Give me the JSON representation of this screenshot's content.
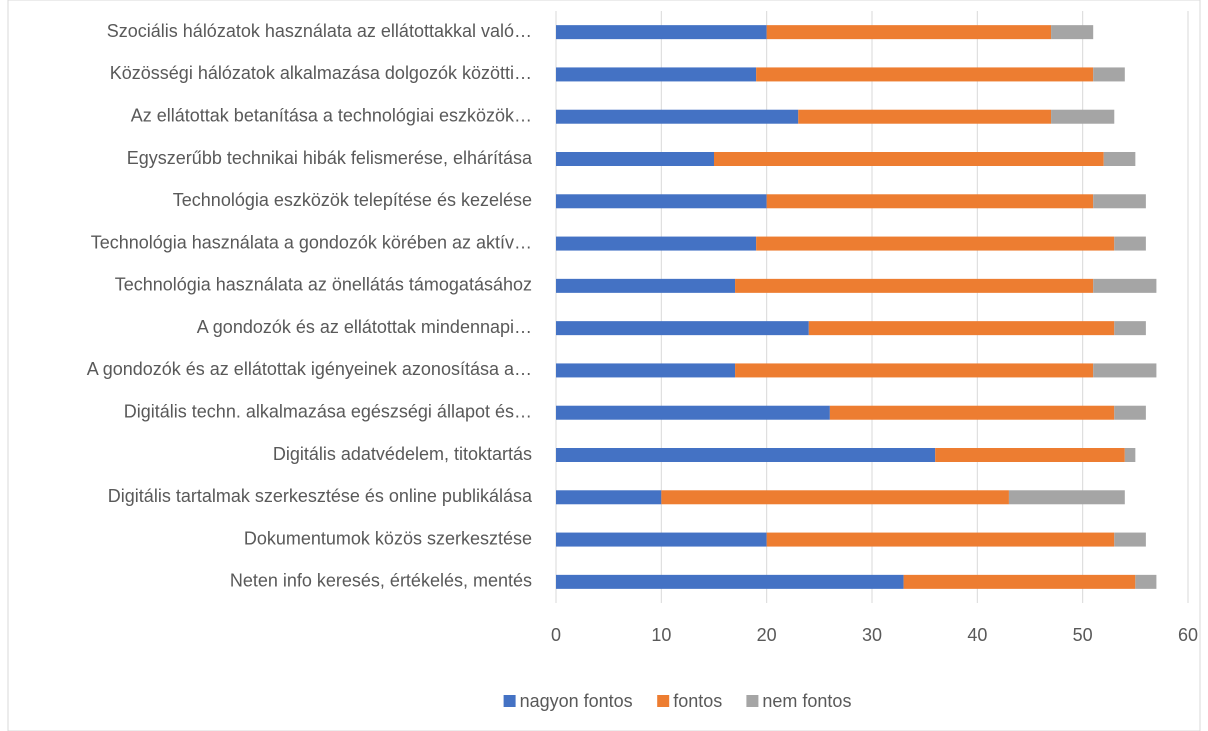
{
  "chart_data": {
    "type": "bar",
    "orientation": "horizontal",
    "stacked": true,
    "categories": [
      "Szociális hálózatok használata az ellátottakkal való…",
      "Közösségi hálózatok alkalmazása dolgozók közötti…",
      "Az ellátottak betanítása a technológiai eszközök…",
      "Egyszerűbb technikai hibák felismerése,  elhárítása",
      "Technológia eszközök telepítése és kezelése",
      "Technológia használata a gondozók körében az aktív…",
      "Technológia használata az önellátás támogatásához",
      "A gondozók és az ellátottak mindennapi…",
      "A gondozók és az ellátottak igényeinek azonosítása a…",
      "Digitális techn. alkalmazása egészségi állapot és…",
      "Digitális adatvédelem, titoktartás",
      "Digitális tartalmak szerkesztése és online publikálása",
      "Dokumentumok közös szerkesztése",
      "Neten info keresés, értékelés, mentés"
    ],
    "series": [
      {
        "name": "nagyon fontos",
        "color": "#4472c4",
        "values": [
          20,
          19,
          23,
          15,
          20,
          19,
          17,
          24,
          17,
          26,
          36,
          10,
          20,
          33
        ]
      },
      {
        "name": "fontos",
        "color": "#ed7d31",
        "values": [
          27,
          32,
          24,
          37,
          31,
          34,
          34,
          29,
          34,
          27,
          18,
          33,
          33,
          22
        ]
      },
      {
        "name": "nem fontos",
        "color": "#a5a5a5",
        "values": [
          4,
          3,
          6,
          3,
          5,
          3,
          6,
          3,
          6,
          3,
          1,
          11,
          3,
          2
        ]
      }
    ],
    "xlim": [
      0,
      60
    ],
    "xticks": [
      0,
      10,
      20,
      30,
      40,
      50,
      60
    ],
    "grid": true,
    "legend": "bottom"
  }
}
